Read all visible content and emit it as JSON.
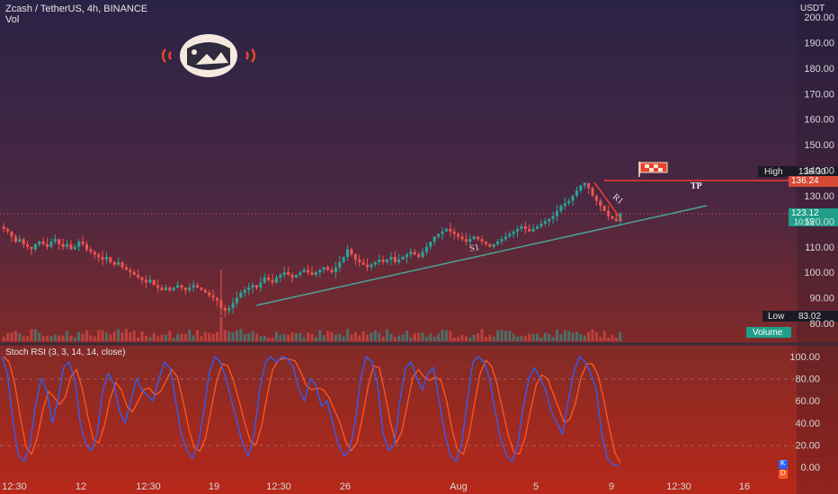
{
  "header": {
    "symbol_line": "Zcash / TetherUS, 4h, BINANCE",
    "vol_label": "Vol",
    "currency": "USDT"
  },
  "price_axis": {
    "ticks": [
      "200.00",
      "190.00",
      "180.00",
      "170.00",
      "160.00",
      "150.00",
      "140.00",
      "130.00",
      "120.00",
      "110.00",
      "100.00",
      "90.00",
      "80.00"
    ]
  },
  "markers": {
    "high": {
      "label": "High",
      "value": "136.30"
    },
    "tp_price": "136.24",
    "current_price": "123.12",
    "countdown": "10:55",
    "low": {
      "label": "Low",
      "value": "83.02"
    },
    "volume_label": "Volume"
  },
  "annotations": {
    "s1": "S1",
    "r1": "R1",
    "tp": "TP"
  },
  "oscillator": {
    "title": "Stoch RSI (3, 3, 14, 14, close)",
    "ticks": [
      "100.00",
      "80.00",
      "60.00",
      "40.00",
      "20.00",
      "0.00"
    ],
    "badge_k": "K",
    "badge_d": "D"
  },
  "time_axis": {
    "ticks": [
      "12:30",
      "12",
      "12:30",
      "19",
      "12:30",
      "26",
      "Aug",
      "5",
      "9",
      "12:30",
      "16"
    ]
  },
  "colors": {
    "up": "#26a69a",
    "down": "#ef5350",
    "k_line": "#2962ff",
    "d_line": "#ff5722",
    "trendline": "#4aa49a",
    "tp_line": "#ef3b2c"
  },
  "chart_data": {
    "type": "candlestick",
    "symbol": "Zcash / TetherUS",
    "interval": "4h",
    "ylim": [
      78,
      202
    ],
    "high": 136.3,
    "low": 83.02,
    "last": 123.12,
    "closes": [
      117,
      116,
      114,
      112,
      113,
      111,
      110,
      109,
      111,
      112,
      111,
      110,
      112,
      113,
      111,
      110,
      111,
      109,
      110,
      112,
      111,
      109,
      108,
      107,
      106,
      105,
      106,
      104,
      103,
      104,
      102,
      101,
      100,
      99,
      98,
      97,
      96,
      97,
      95,
      94,
      93,
      94,
      93,
      94,
      95,
      94,
      93,
      94,
      95,
      94,
      93,
      92,
      91,
      90,
      89,
      86,
      85,
      86,
      88,
      90,
      92,
      93,
      94,
      95,
      94,
      96,
      98,
      97,
      96,
      98,
      99,
      100,
      99,
      98,
      99,
      100,
      101,
      100,
      99,
      100,
      101,
      102,
      101,
      100,
      102,
      104,
      106,
      109,
      107,
      105,
      104,
      103,
      102,
      103,
      104,
      105,
      104,
      105,
      106,
      104,
      105,
      106,
      107,
      108,
      107,
      106,
      108,
      110,
      112,
      114,
      115,
      116,
      117,
      116,
      115,
      114,
      113,
      112,
      113,
      114,
      113,
      112,
      111,
      110,
      111,
      112,
      113,
      114,
      115,
      116,
      117,
      118,
      117,
      116,
      117,
      118,
      119,
      120,
      121,
      122,
      124,
      126,
      127,
      128,
      130,
      132,
      134,
      135,
      133,
      130,
      128,
      126,
      124,
      122,
      121,
      120,
      123
    ],
    "stoch_k": [
      100,
      85,
      40,
      10,
      5,
      20,
      55,
      80,
      70,
      40,
      60,
      90,
      95,
      80,
      40,
      20,
      15,
      30,
      70,
      85,
      75,
      50,
      40,
      60,
      80,
      70,
      65,
      60,
      80,
      95,
      90,
      60,
      30,
      15,
      8,
      20,
      50,
      85,
      100,
      95,
      80,
      60,
      40,
      20,
      10,
      30,
      70,
      95,
      100,
      95,
      100,
      98,
      90,
      70,
      60,
      80,
      75,
      55,
      60,
      40,
      20,
      10,
      15,
      40,
      80,
      100,
      95,
      75,
      30,
      15,
      20,
      60,
      90,
      95,
      80,
      70,
      85,
      90,
      60,
      30,
      10,
      5,
      20,
      60,
      95,
      100,
      95,
      80,
      50,
      25,
      10,
      5,
      20,
      55,
      80,
      90,
      80,
      70,
      50,
      40,
      30,
      60,
      85,
      100,
      95,
      85,
      70,
      30,
      8,
      2,
      1
    ]
  }
}
